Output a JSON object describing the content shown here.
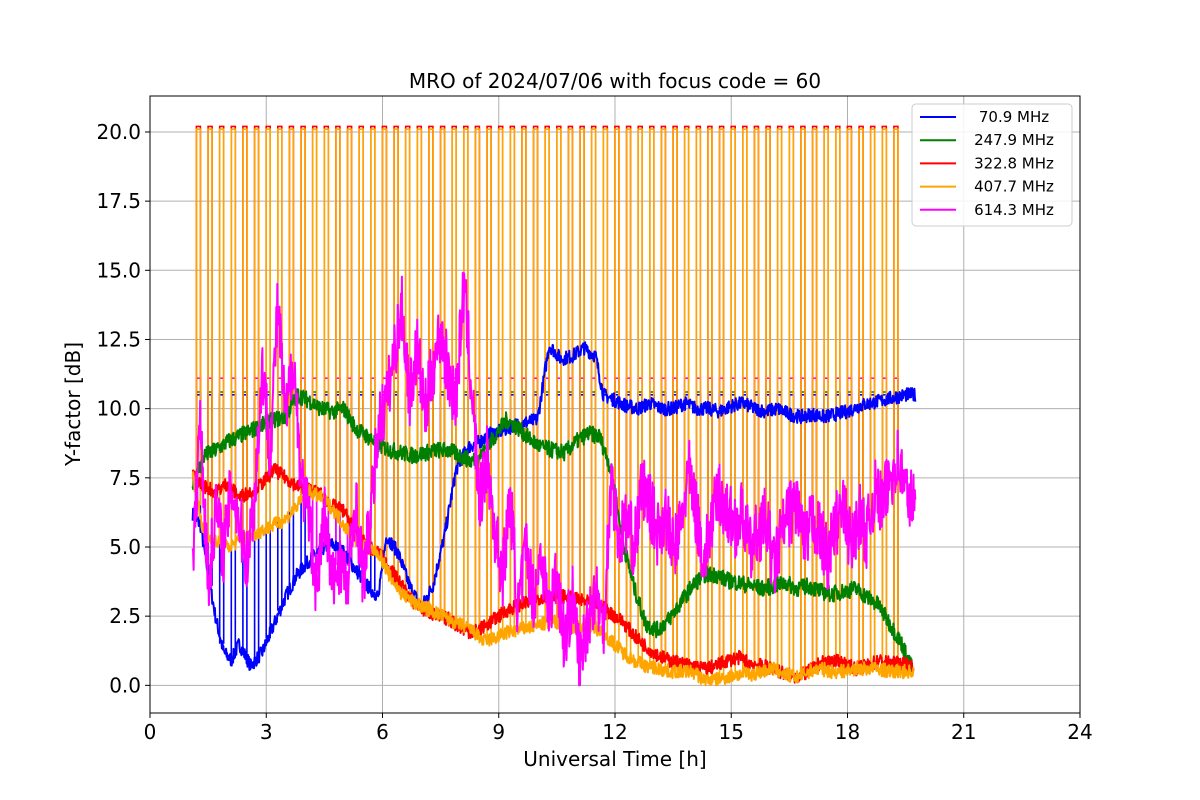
{
  "chart_data": {
    "type": "line",
    "title": "MRO of 2024/07/06 with focus code = 60",
    "xlabel": "Universal Time [h]",
    "ylabel": "Y-factor [dB]",
    "xlim": [
      0,
      24
    ],
    "ylim": [
      -1.0,
      21.3
    ],
    "xticks": [
      0,
      3,
      6,
      9,
      12,
      15,
      18,
      21,
      24
    ],
    "xtick_labels": [
      "0",
      "3",
      "6",
      "9",
      "12",
      "15",
      "18",
      "21",
      "24"
    ],
    "yticks": [
      0.0,
      2.5,
      5.0,
      7.5,
      10.0,
      12.5,
      15.0,
      17.5,
      20.0
    ],
    "ytick_labels": [
      "0.0",
      "2.5",
      "5.0",
      "7.5",
      "10.0",
      "12.5",
      "15.0",
      "17.5",
      "20.0"
    ],
    "grid": true,
    "legend_position": "top-right",
    "calibration_spikes": {
      "start": 1.25,
      "end": 19.5,
      "interval": 0.3,
      "peak_orange": 20.1,
      "peak_red": 20.2,
      "peak_magenta": 11.1,
      "peak_blue": 10.5,
      "peak_green": 10.6
    },
    "series": [
      {
        "name": "70.9 MHz",
        "color": "#0000ff",
        "x": [
          1.1,
          1.3,
          1.5,
          1.7,
          1.9,
          2.1,
          2.3,
          2.6,
          2.9,
          3.2,
          3.5,
          3.8,
          4.1,
          4.4,
          4.7,
          5.0,
          5.3,
          5.6,
          5.9,
          6.1,
          6.4,
          6.7,
          7.0,
          7.3,
          7.6,
          7.9,
          8.2,
          8.5,
          8.8,
          9.1,
          9.4,
          9.7,
          10.0,
          10.3,
          10.6,
          10.9,
          11.2,
          11.5,
          11.7,
          12.0,
          12.3,
          12.6,
          12.9,
          13.2,
          13.5,
          13.8,
          14.1,
          14.4,
          14.7,
          15.0,
          15.3,
          15.6,
          15.9,
          16.2,
          16.5,
          16.8,
          17.1,
          17.4,
          17.7,
          18.0,
          18.3,
          18.6,
          18.9,
          19.2,
          19.5,
          19.75
        ],
        "y": [
          6.2,
          5.8,
          4.0,
          2.4,
          1.2,
          0.9,
          1.5,
          0.7,
          1.2,
          2.2,
          3.2,
          4.0,
          4.5,
          4.9,
          5.1,
          4.8,
          4.2,
          3.6,
          3.2,
          5.4,
          4.8,
          3.6,
          2.8,
          3.6,
          5.4,
          7.8,
          8.6,
          8.8,
          9.1,
          9.2,
          9.4,
          9.5,
          9.6,
          12.3,
          11.8,
          11.9,
          12.2,
          11.9,
          10.5,
          10.3,
          10.1,
          10.0,
          10.2,
          10.0,
          10.0,
          10.2,
          10.0,
          10.0,
          9.9,
          10.1,
          10.2,
          10.0,
          9.9,
          10.0,
          9.8,
          9.7,
          9.8,
          9.7,
          9.8,
          9.9,
          10.1,
          10.2,
          10.3,
          10.4,
          10.5,
          10.5
        ]
      },
      {
        "name": "247.9 MHz",
        "color": "#008000",
        "x": [
          1.1,
          1.4,
          1.7,
          2.0,
          2.3,
          2.6,
          2.9,
          3.2,
          3.5,
          3.8,
          4.1,
          4.4,
          4.7,
          5.0,
          5.3,
          5.6,
          5.9,
          6.2,
          6.5,
          6.8,
          7.1,
          7.4,
          7.7,
          8.0,
          8.3,
          8.6,
          8.9,
          9.2,
          9.5,
          9.8,
          10.1,
          10.4,
          10.7,
          11.0,
          11.3,
          11.6,
          11.9,
          12.2,
          12.5,
          12.8,
          13.1,
          13.4,
          13.7,
          14.0,
          14.3,
          14.6,
          14.9,
          15.2,
          15.5,
          15.8,
          16.1,
          16.4,
          16.7,
          17.0,
          17.3,
          17.6,
          17.9,
          18.2,
          18.5,
          18.8,
          19.1,
          19.4,
          19.7
        ],
        "y": [
          7.2,
          8.3,
          8.5,
          8.8,
          9.0,
          9.2,
          9.4,
          9.6,
          9.7,
          10.5,
          10.3,
          10.0,
          9.9,
          10.0,
          9.3,
          9.0,
          8.7,
          8.5,
          8.4,
          8.3,
          8.4,
          8.5,
          8.5,
          8.3,
          8.1,
          8.4,
          9.0,
          9.6,
          9.3,
          8.9,
          8.6,
          8.5,
          8.4,
          8.8,
          9.1,
          9.0,
          7.8,
          5.2,
          3.5,
          2.2,
          2.0,
          2.4,
          3.0,
          3.6,
          4.0,
          4.0,
          3.8,
          3.7,
          3.6,
          3.5,
          3.6,
          3.7,
          3.5,
          3.6,
          3.4,
          3.3,
          3.4,
          3.5,
          3.2,
          2.9,
          2.2,
          1.5,
          0.5
        ]
      },
      {
        "name": "322.8 MHz",
        "color": "#ff0000",
        "x": [
          1.1,
          1.4,
          1.7,
          2.0,
          2.3,
          2.6,
          2.9,
          3.2,
          3.5,
          3.8,
          4.1,
          4.4,
          4.7,
          5.0,
          5.3,
          5.6,
          5.9,
          6.2,
          6.5,
          6.8,
          7.1,
          7.4,
          7.7,
          8.0,
          8.3,
          8.6,
          8.9,
          9.2,
          9.5,
          9.8,
          10.1,
          10.4,
          10.7,
          11.0,
          11.3,
          11.6,
          11.9,
          12.2,
          12.5,
          12.8,
          13.1,
          13.4,
          13.7,
          14.0,
          14.3,
          14.6,
          14.9,
          15.2,
          15.5,
          15.8,
          16.1,
          16.4,
          16.7,
          17.0,
          17.3,
          17.6,
          17.9,
          18.2,
          18.5,
          18.8,
          19.1,
          19.4,
          19.7
        ],
        "y": [
          7.6,
          7.2,
          7.0,
          7.3,
          6.8,
          7.0,
          7.3,
          7.8,
          7.5,
          7.2,
          7.1,
          6.9,
          6.5,
          6.3,
          5.6,
          5.0,
          4.8,
          4.2,
          3.6,
          3.0,
          2.7,
          2.5,
          2.4,
          2.1,
          1.9,
          2.1,
          2.4,
          2.7,
          2.9,
          3.0,
          3.2,
          3.3,
          3.2,
          3.1,
          3.0,
          2.9,
          2.6,
          2.3,
          1.8,
          1.4,
          1.1,
          0.9,
          0.8,
          0.7,
          0.6,
          0.7,
          0.9,
          1.0,
          0.8,
          0.7,
          0.6,
          0.4,
          0.3,
          0.5,
          0.8,
          0.9,
          0.8,
          0.6,
          0.7,
          0.9,
          0.8,
          0.8,
          0.7
        ]
      },
      {
        "name": "407.7 MHz",
        "color": "#ffa500",
        "x": [
          1.1,
          1.4,
          1.7,
          2.0,
          2.3,
          2.6,
          2.9,
          3.2,
          3.5,
          3.8,
          4.1,
          4.4,
          4.7,
          5.0,
          5.3,
          5.6,
          5.9,
          6.2,
          6.5,
          6.8,
          7.1,
          7.4,
          7.7,
          8.0,
          8.3,
          8.6,
          8.9,
          9.2,
          9.5,
          9.8,
          10.1,
          10.4,
          10.7,
          11.0,
          11.3,
          11.6,
          11.9,
          12.2,
          12.5,
          12.8,
          13.1,
          13.4,
          13.7,
          14.0,
          14.3,
          14.6,
          14.9,
          15.2,
          15.5,
          15.8,
          16.1,
          16.4,
          16.7,
          17.0,
          17.3,
          17.6,
          17.9,
          18.2,
          18.5,
          18.8,
          19.1,
          19.4,
          19.7
        ],
        "y": [
          7.6,
          5.4,
          5.2,
          5.0,
          5.2,
          5.4,
          5.6,
          5.8,
          6.0,
          6.5,
          7.0,
          6.8,
          6.4,
          5.8,
          5.3,
          5.0,
          4.8,
          3.9,
          3.3,
          3.0,
          2.8,
          2.6,
          2.4,
          2.2,
          2.0,
          1.6,
          1.7,
          1.9,
          2.0,
          2.1,
          2.2,
          2.3,
          2.2,
          2.1,
          2.2,
          2.0,
          1.6,
          1.2,
          0.9,
          0.7,
          0.6,
          0.5,
          0.5,
          0.5,
          0.2,
          0.2,
          0.3,
          0.4,
          0.4,
          0.5,
          0.6,
          0.4,
          0.3,
          0.5,
          0.6,
          0.5,
          0.5,
          0.6,
          0.6,
          0.6,
          0.5,
          0.5,
          0.5
        ]
      },
      {
        "name": "614.3 MHz",
        "color": "#ff00ff",
        "x": [
          1.1,
          1.3,
          1.5,
          1.7,
          1.9,
          2.1,
          2.3,
          2.5,
          2.7,
          2.9,
          3.1,
          3.3,
          3.5,
          3.7,
          3.9,
          4.1,
          4.3,
          4.5,
          4.7,
          4.9,
          5.1,
          5.3,
          5.5,
          5.7,
          5.9,
          6.1,
          6.3,
          6.5,
          6.7,
          6.9,
          7.1,
          7.3,
          7.5,
          7.7,
          7.9,
          8.1,
          8.3,
          8.5,
          8.7,
          8.9,
          9.1,
          9.3,
          9.5,
          9.7,
          9.9,
          10.1,
          10.3,
          10.5,
          10.7,
          10.9,
          11.1,
          11.3,
          11.5,
          11.7,
          11.9,
          12.1,
          12.3,
          12.5,
          12.7,
          12.9,
          13.1,
          13.3,
          13.5,
          13.7,
          13.9,
          14.1,
          14.3,
          14.5,
          14.7,
          14.9,
          15.1,
          15.3,
          15.5,
          15.7,
          15.9,
          16.1,
          16.3,
          16.5,
          16.7,
          16.9,
          17.1,
          17.3,
          17.5,
          17.7,
          17.9,
          18.1,
          18.3,
          18.5,
          18.7,
          18.9,
          19.1,
          19.3,
          19.5,
          19.75
        ],
        "y": [
          4.2,
          9.8,
          3.5,
          6.5,
          4.8,
          7.2,
          6.0,
          4.5,
          6.8,
          11.5,
          8.5,
          13.8,
          9.5,
          12.0,
          7.5,
          6.0,
          3.5,
          6.2,
          3.6,
          4.6,
          3.5,
          6.8,
          3.8,
          6.2,
          9.5,
          10.2,
          12.0,
          13.6,
          10.5,
          12.2,
          9.8,
          11.5,
          12.8,
          11.2,
          10.4,
          14.5,
          10.8,
          6.5,
          8.2,
          5.5,
          4.0,
          6.8,
          2.6,
          5.0,
          3.2,
          4.8,
          2.5,
          4.2,
          1.5,
          3.2,
          0.8,
          2.4,
          3.5,
          2.0,
          7.5,
          5.2,
          6.0,
          5.0,
          7.2,
          6.5,
          5.5,
          6.2,
          4.8,
          5.8,
          7.8,
          6.2,
          4.5,
          6.0,
          7.0,
          6.2,
          5.8,
          6.2,
          4.8,
          5.6,
          6.0,
          4.2,
          5.5,
          6.2,
          6.6,
          5.0,
          6.0,
          5.4,
          4.6,
          5.8,
          6.4,
          5.0,
          6.2,
          5.4,
          7.0,
          6.5,
          7.5,
          8.2,
          7.0,
          6.5
        ]
      }
    ]
  }
}
